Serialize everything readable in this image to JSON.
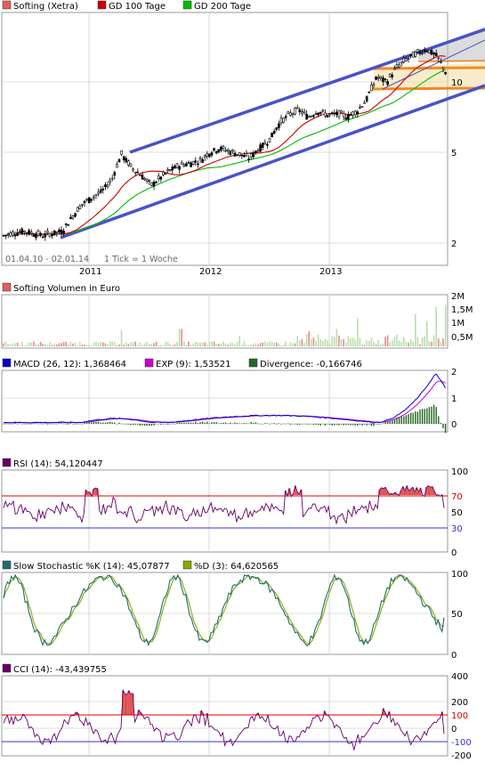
{
  "colors": {
    "background": "#ffffff",
    "grid": "#c8c8c8",
    "frame": "#999999",
    "price": "#000000",
    "ma100": "#cc0000",
    "ma200": "#00bb00",
    "trend_channel": "#4a52c8",
    "support": "#f08a24",
    "volume": "#b8e0a8",
    "volume_down": "#e88a8a",
    "macd": "#0000cc",
    "exp": "#cc00cc",
    "divergence": "#226622",
    "rsi": "#660066",
    "rsi_fill": "#e05050",
    "stoch_k": "#1e6e6e",
    "stoch_d": "#88aa00",
    "cci": "#660066",
    "cci_fill": "#e05050",
    "ref_red": "#dd0000",
    "ref_blue": "#3333cc"
  },
  "chart_data": [
    {
      "type": "line",
      "panel": "price",
      "legend_position": "top-left",
      "series": [
        {
          "name": "Softing (Xetra)",
          "color_key": "price",
          "style": "candles"
        },
        {
          "name": "GD 100 Tage",
          "color_key": "ma100"
        },
        {
          "name": "GD 200 Tage",
          "color_key": "ma200"
        }
      ],
      "x_ticks": [
        "2011",
        "2012",
        "2013"
      ],
      "y_ticks": [
        "2",
        "5",
        "10"
      ],
      "y_scale": "log",
      "ylim": [
        1.7,
        15
      ],
      "date_range": "01.04.10 - 02.01.14",
      "tick_info": "1 Tick = 1 Woche",
      "price_points": [
        [
          "2010-04",
          2.2
        ],
        [
          "2010-06",
          2.3
        ],
        [
          "2010-08",
          2.2
        ],
        [
          "2010-10",
          2.3
        ],
        [
          "2010-12",
          3.0
        ],
        [
          "2011-02",
          3.4
        ],
        [
          "2011-03",
          3.8
        ],
        [
          "2011-04",
          4.9
        ],
        [
          "2011-05",
          4.3
        ],
        [
          "2011-06",
          4.0
        ],
        [
          "2011-07",
          3.6
        ],
        [
          "2011-08",
          3.9
        ],
        [
          "2011-09",
          4.2
        ],
        [
          "2011-10",
          4.4
        ],
        [
          "2011-12",
          4.6
        ],
        [
          "2012-01",
          5.0
        ],
        [
          "2012-02",
          5.2
        ],
        [
          "2012-04",
          4.9
        ],
        [
          "2012-05",
          4.7
        ],
        [
          "2012-06",
          5.2
        ],
        [
          "2012-07",
          5.6
        ],
        [
          "2012-08",
          6.6
        ],
        [
          "2012-09",
          7.2
        ],
        [
          "2012-10",
          7.6
        ],
        [
          "2012-11",
          7.1
        ],
        [
          "2012-12",
          7.5
        ],
        [
          "2013-01",
          7.2
        ],
        [
          "2013-02",
          7.3
        ],
        [
          "2013-03",
          7.1
        ],
        [
          "2013-04",
          7.5
        ],
        [
          "2013-05",
          8.5
        ],
        [
          "2013-06",
          10.5
        ],
        [
          "2013-07",
          10.0
        ],
        [
          "2013-08",
          11.5
        ],
        [
          "2013-09",
          12.5
        ],
        [
          "2013-10",
          13.2
        ],
        [
          "2013-11",
          13.8
        ],
        [
          "2013-12",
          13.0
        ],
        [
          "2014-01",
          11.0
        ]
      ]
    },
    {
      "type": "bar",
      "panel": "volume",
      "legend": "Softing Volumen in Euro",
      "y_ticks": [
        "0,5M",
        "1M",
        "1,5M",
        "2M"
      ],
      "ylim": [
        0,
        2100000
      ],
      "peak_values": [
        [
          "2011-04",
          700000
        ],
        [
          "2011-10",
          750000
        ],
        [
          "2012-04",
          450000
        ],
        [
          "2012-11",
          650000
        ],
        [
          "2013-02",
          750000
        ],
        [
          "2013-04",
          1200000
        ],
        [
          "2013-10",
          1400000
        ],
        [
          "2013-11",
          1100000
        ],
        [
          "2013-12",
          1700000
        ],
        [
          "2014-01",
          1800000
        ]
      ]
    },
    {
      "type": "line",
      "panel": "macd",
      "legend": [
        {
          "label": "MACD (26, 12): 1,368464",
          "color_key": "macd"
        },
        {
          "label": "EXP (9): 1,53521",
          "color_key": "exp"
        },
        {
          "label": "Divergence: -0,166746",
          "color_key": "divergence"
        }
      ],
      "y_ticks": [
        "0",
        "1",
        "2"
      ],
      "ylim": [
        -0.2,
        2.1
      ],
      "last_values": {
        "MACD": 1.368464,
        "EXP": 1.53521,
        "Divergence": -0.166746
      }
    },
    {
      "type": "line",
      "panel": "rsi",
      "legend": "RSI (14): 54,120447",
      "y_ticks": [
        "0",
        "30",
        "50",
        "70",
        "100"
      ],
      "reference_lines": [
        70,
        30
      ],
      "ylim": [
        0,
        100
      ],
      "last_value": 54.120447
    },
    {
      "type": "line",
      "panel": "stochastic",
      "legend": [
        {
          "label": "Slow Stochastic %K (14): 45,07877",
          "color_key": "stoch_k"
        },
        {
          "label": "%D (3): 64,620565",
          "color_key": "stoch_d"
        }
      ],
      "y_ticks": [
        "0",
        "50",
        "100"
      ],
      "ylim": [
        0,
        100
      ],
      "last_values": {
        "K": 45.07877,
        "D": 64.620565
      }
    },
    {
      "type": "line",
      "panel": "cci",
      "legend": "CCI (14): -43,439755",
      "y_ticks": [
        "-200",
        "-100",
        "0",
        "100",
        "200",
        "400"
      ],
      "reference_lines": [
        100,
        -100
      ],
      "ylim": [
        -200,
        400
      ],
      "last_value": -43.439755
    }
  ]
}
